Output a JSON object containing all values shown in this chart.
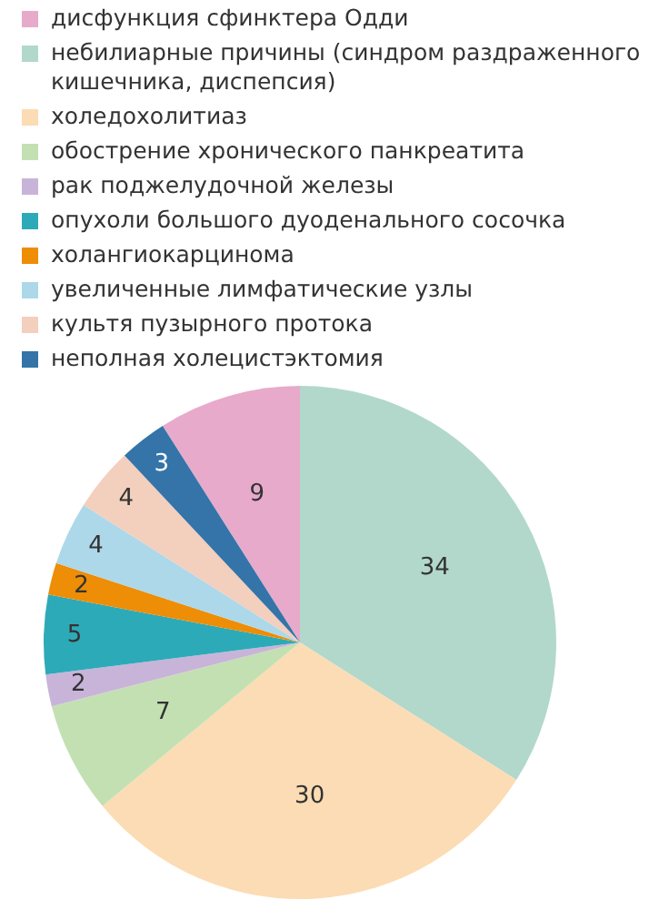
{
  "chart_data": {
    "type": "pie",
    "categories": [
      "дисфункция сфинктера Одди",
      "небилиарные причины (синдром раздраженного кишечника, диспепсия)",
      "холедохолитиаз",
      "обострение хронического панкреатита",
      "рак поджелудочной железы",
      "опухоли большого дуоденального сосочка",
      "холангиокарцинома",
      "увеличенные лимфатические узлы",
      "культя пузырного протока",
      "неполная холецистэктомия"
    ],
    "values": [
      9,
      34,
      30,
      7,
      2,
      5,
      2,
      4,
      4,
      3
    ],
    "colors": [
      "#e8aacb",
      "#b2d8cb",
      "#fbdcb4",
      "#c3e0b3",
      "#c9b4d9",
      "#2daab8",
      "#ee8d06",
      "#acd8ea",
      "#f3cfbd",
      "#3474a8"
    ],
    "data_labels": true,
    "legend": "top"
  }
}
